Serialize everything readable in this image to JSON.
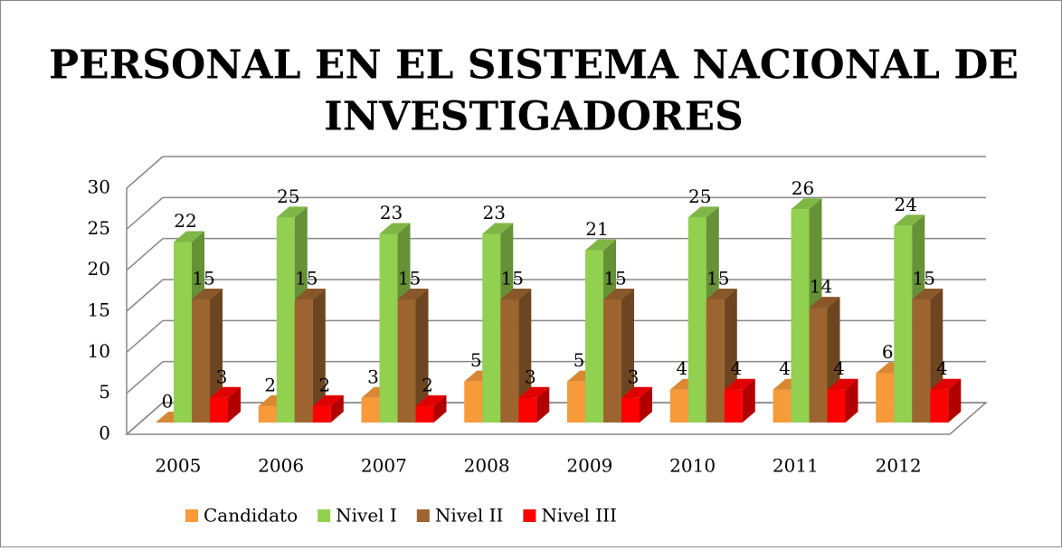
{
  "chart_data": {
    "type": "bar3d",
    "title": "PERSONAL EN EL SISTEMA NACIONAL DE",
    "title_line2": "INVESTIGADORES",
    "categories": [
      "2005",
      "2006",
      "2007",
      "2008",
      "2009",
      "2010",
      "2011",
      "2012"
    ],
    "series": [
      {
        "name": "Candidato",
        "color": "#f79a3a",
        "values": [
          0,
          2,
          3,
          5,
          5,
          4,
          4,
          6
        ]
      },
      {
        "name": "Nivel I",
        "color": "#92d050",
        "values": [
          22,
          25,
          23,
          23,
          21,
          25,
          26,
          24
        ]
      },
      {
        "name": "Nivel II",
        "color": "#9c6530",
        "values": [
          15,
          15,
          15,
          15,
          15,
          15,
          14,
          15
        ]
      },
      {
        "name": "Nivel III",
        "color": "#ff0000",
        "values": [
          3,
          2,
          2,
          3,
          3,
          4,
          4,
          4
        ]
      }
    ],
    "ylim": [
      0,
      30
    ],
    "yticks": [
      0,
      5,
      10,
      15,
      20,
      25,
      30
    ],
    "grid": true,
    "legend": "bottom"
  }
}
